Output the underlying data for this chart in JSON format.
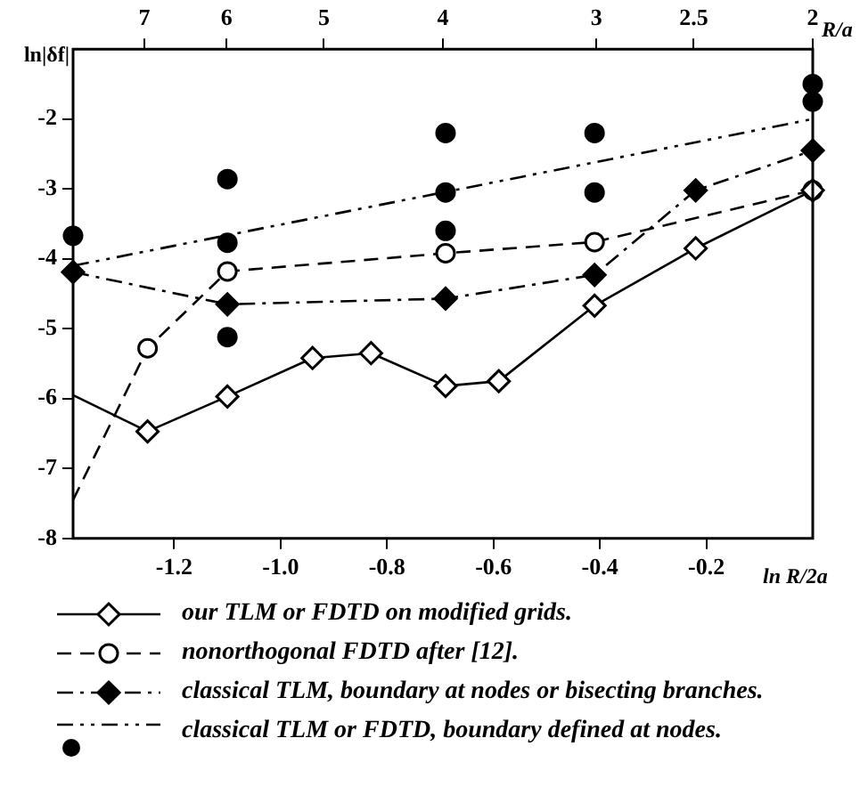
{
  "chart_data": {
    "type": "line",
    "xlabel": "ln R/2a",
    "ylabel": "ln|δf|",
    "x2label": "R/a",
    "xlim": [
      -1.39,
      0
    ],
    "ylim": [
      -8,
      -1
    ],
    "xticks": [
      {
        "value": -1.2,
        "label": "-1.2"
      },
      {
        "value": -1.0,
        "label": "-1.0"
      },
      {
        "value": -0.8,
        "label": "-0.8"
      },
      {
        "value": -0.6,
        "label": "-0.6"
      },
      {
        "value": -0.4,
        "label": "-0.4"
      },
      {
        "value": -0.2,
        "label": "-0.2"
      }
    ],
    "yticks": [
      -8,
      -7,
      -6,
      -5,
      -4,
      -3,
      -2
    ],
    "x2lim": [
      8,
      2
    ],
    "log": "x2",
    "x2ticks": [
      7,
      6,
      5,
      4,
      3,
      2.5,
      2
    ],
    "grid": false,
    "legend": "bottom",
    "series": [
      {
        "name": "our TLM or FDTD on modified grids.",
        "color": "#000000",
        "line_style": "solid",
        "marker": "diamond",
        "x": [
          -1.39,
          -1.25,
          -1.1,
          -0.94,
          -0.83,
          -0.69,
          -0.59,
          -0.41,
          -0.22,
          0
        ],
        "values": [
          -5.95,
          -6.47,
          -5.97,
          -5.42,
          -5.35,
          -5.82,
          -5.75,
          -4.67,
          -3.85,
          -3.02
        ]
      },
      {
        "name": "nonorthogonal FDTD after [12].",
        "color": "#000000",
        "line_style": "dashed",
        "marker": "circle",
        "x": [
          -1.39,
          -1.25,
          -1.1,
          -0.69,
          -0.41,
          0
        ],
        "values": [
          -7.45,
          -5.28,
          -4.18,
          -3.92,
          -3.76,
          -3.02
        ]
      },
      {
        "name": "classical TLM, boundary at nodes or bisecting branches.",
        "color": "#000000",
        "line_style": "dashdot",
        "marker": "diamond",
        "x": [
          -1.39,
          -1.1,
          -0.69,
          -0.41,
          -0.22,
          0
        ],
        "values": [
          -4.19,
          -4.65,
          -4.57,
          -4.23,
          -3.02,
          -2.45
        ]
      },
      {
        "name": "classical TLM or FDTD, boundary defined at nodes.",
        "color": "#000000",
        "line_style": "dashdotdot",
        "marker": "none",
        "x": [
          -1.39,
          0
        ],
        "values": [
          -4.1,
          -2.0
        ]
      },
      {
        "type": "scatter",
        "color": "#000000",
        "marker": "circle",
        "x": [
          -1.39,
          -1.1,
          -1.1,
          -1.1,
          -0.69,
          -0.69,
          -0.69,
          -0.41,
          -0.41,
          0,
          0
        ],
        "values": [
          -3.67,
          -3.77,
          -2.86,
          -5.12,
          -2.2,
          -3.05,
          -3.6,
          -2.2,
          -3.05,
          -1.5,
          -1.75
        ]
      }
    ]
  }
}
